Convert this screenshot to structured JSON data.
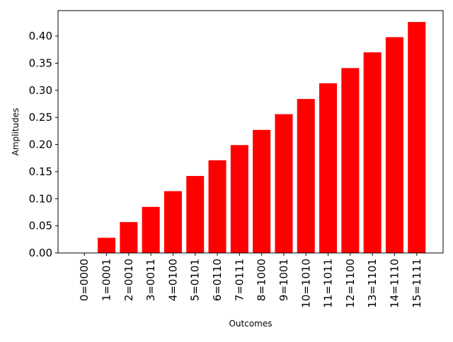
{
  "chart_data": {
    "type": "bar",
    "title": "",
    "xlabel": "Outcomes",
    "ylabel": "Amplitudes",
    "categories": [
      "0=0000",
      "1=0001",
      "2=0010",
      "3=0011",
      "4=0100",
      "5=0101",
      "6=0110",
      "7=0111",
      "8=1000",
      "9=1001",
      "10=1010",
      "11=1011",
      "12=1100",
      "13=1101",
      "14=1110",
      "15=1111"
    ],
    "values": [
      0.0,
      0.028,
      0.057,
      0.085,
      0.114,
      0.142,
      0.171,
      0.199,
      0.227,
      0.256,
      0.284,
      0.313,
      0.341,
      0.37,
      0.398,
      0.426
    ],
    "ylim": [
      0,
      0.447
    ],
    "yticks": [
      0.0,
      0.05,
      0.1,
      0.15,
      0.2,
      0.25,
      0.3,
      0.35,
      0.4
    ],
    "ytick_labels": [
      "0.00",
      "0.05",
      "0.10",
      "0.15",
      "0.20",
      "0.25",
      "0.30",
      "0.35",
      "0.40"
    ],
    "bar_color": "#ff0000",
    "grid": false,
    "legend": "none"
  }
}
